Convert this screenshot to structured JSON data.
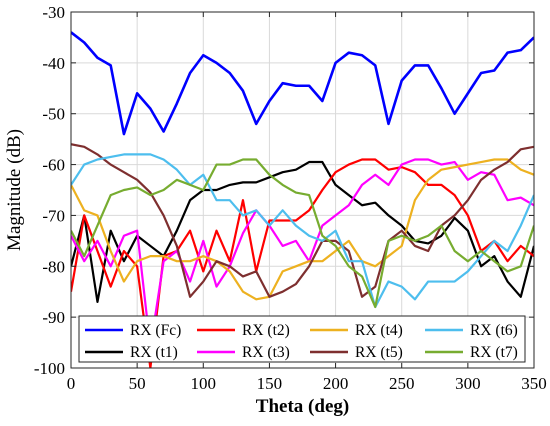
{
  "chart_data": {
    "type": "line",
    "title": "",
    "xlabel": "Theta (deg)",
    "ylabel": "Magnitude (dB)",
    "xlim": [
      0,
      350
    ],
    "ylim": [
      -100,
      -30
    ],
    "xticks": [
      0,
      50,
      100,
      150,
      200,
      250,
      300,
      350
    ],
    "yticks": [
      -30,
      -40,
      -50,
      -60,
      -70,
      -80,
      -90,
      -100
    ],
    "xtick_labels": [
      "0",
      "50",
      "100",
      "150",
      "200",
      "250",
      "300",
      "350"
    ],
    "ytick_labels": [
      "-30",
      "-40",
      "-50",
      "-60",
      "-70",
      "-80",
      "-90",
      "-100"
    ],
    "grid": true,
    "legend_placement": "bottom",
    "legend_columns": 4,
    "series": [
      {
        "name": "RX (Fc)",
        "color": "#0000ff",
        "x": [
          0,
          10,
          20,
          30,
          40,
          50,
          60,
          70,
          80,
          90,
          100,
          110,
          120,
          130,
          140,
          150,
          160,
          170,
          180,
          190,
          200,
          210,
          220,
          230,
          240,
          250,
          260,
          270,
          280,
          290,
          300,
          310,
          320,
          330,
          340,
          350
        ],
        "y": [
          -34,
          -36,
          -39,
          -40.5,
          -54,
          -46,
          -49,
          -53.5,
          -48,
          -42,
          -38.5,
          -40,
          -42,
          -45.5,
          -52,
          -47.5,
          -44,
          -44.5,
          -44.5,
          -47.5,
          -40,
          -38,
          -38.5,
          -40.5,
          -52,
          -43.5,
          -40.5,
          -40.5,
          -45,
          -50,
          -46,
          -42,
          -41.5,
          -38,
          -37.5,
          -35
        ]
      },
      {
        "name": "RX (t1)",
        "color": "#000000",
        "x": [
          0,
          10,
          20,
          30,
          40,
          50,
          60,
          70,
          80,
          90,
          100,
          110,
          120,
          130,
          140,
          150,
          160,
          170,
          180,
          190,
          200,
          210,
          220,
          230,
          240,
          250,
          260,
          270,
          280,
          290,
          300,
          310,
          320,
          330,
          340,
          350
        ],
        "y": [
          -80,
          -70,
          -87,
          -73,
          -79,
          -74,
          -76,
          -78,
          -73,
          -67,
          -65,
          -65,
          -64,
          -63.5,
          -63.5,
          -62.5,
          -61.5,
          -61,
          -59.5,
          -59.5,
          -64,
          -66,
          -68,
          -67.5,
          -70,
          -72,
          -75,
          -75.5,
          -74,
          -70.5,
          -73,
          -80,
          -78,
          -83,
          -86,
          -76
        ]
      },
      {
        "name": "RX (t2)",
        "color": "#ff0000",
        "x": [
          0,
          10,
          20,
          30,
          40,
          50,
          60,
          70,
          80,
          90,
          100,
          110,
          120,
          130,
          140,
          150,
          160,
          170,
          180,
          190,
          200,
          210,
          220,
          230,
          240,
          250,
          260,
          270,
          280,
          290,
          300,
          310,
          320,
          330,
          340,
          350
        ],
        "y": [
          -85,
          -70,
          -77,
          -84,
          -77,
          -80,
          -100,
          -78,
          -77,
          -73,
          -81,
          -73,
          -79,
          -67,
          -81,
          -71,
          -71,
          -71,
          -69,
          -65,
          -61.5,
          -60,
          -59,
          -59,
          -61,
          -60.5,
          -61.5,
          -64,
          -64,
          -66,
          -70,
          -77,
          -75,
          -79,
          -76,
          -78
        ]
      },
      {
        "name": "RX (t3)",
        "color": "#ff00ff",
        "x": [
          0,
          10,
          20,
          30,
          40,
          50,
          60,
          70,
          80,
          90,
          100,
          110,
          120,
          130,
          140,
          150,
          160,
          170,
          180,
          190,
          200,
          210,
          220,
          230,
          240,
          250,
          260,
          270,
          280,
          290,
          300,
          310,
          320,
          330,
          340,
          350
        ],
        "y": [
          -74,
          -79,
          -75,
          -80,
          -74,
          -73,
          -96,
          -79,
          -77,
          -83,
          -75,
          -84,
          -80,
          -73.5,
          -69,
          -72,
          -76,
          -75,
          -79,
          -72,
          -70,
          -68,
          -64,
          -62,
          -64,
          -60,
          -59,
          -59,
          -60,
          -59.5,
          -63,
          -61.5,
          -62,
          -67,
          -66.5,
          -68
        ]
      },
      {
        "name": "RX (t4)",
        "color": "#edb120",
        "x": [
          0,
          10,
          20,
          30,
          40,
          50,
          60,
          70,
          80,
          90,
          100,
          110,
          120,
          130,
          140,
          150,
          160,
          170,
          180,
          190,
          200,
          210,
          220,
          230,
          240,
          250,
          260,
          270,
          280,
          290,
          300,
          310,
          320,
          330,
          340,
          350
        ],
        "y": [
          -64,
          -69,
          -70,
          -77,
          -83,
          -79,
          -78,
          -78,
          -79,
          -79,
          -78,
          -79,
          -81,
          -85,
          -86.5,
          -86,
          -81,
          -80,
          -79,
          -79,
          -77,
          -75,
          -79,
          -80,
          -78,
          -76,
          -67,
          -63,
          -61,
          -60.5,
          -60,
          -59.5,
          -59,
          -59,
          -61,
          -62
        ]
      },
      {
        "name": "RX (t5)",
        "color": "#7e2f2f",
        "x": [
          0,
          10,
          20,
          30,
          40,
          50,
          60,
          70,
          80,
          90,
          100,
          110,
          120,
          130,
          140,
          150,
          160,
          170,
          180,
          190,
          200,
          210,
          220,
          230,
          240,
          250,
          260,
          270,
          280,
          290,
          300,
          310,
          320,
          330,
          340,
          350
        ],
        "y": [
          -56,
          -56.5,
          -58,
          -60,
          -61.5,
          -63,
          -65.5,
          -70,
          -76,
          -86,
          -83,
          -79,
          -80,
          -82,
          -81,
          -86,
          -85,
          -83.5,
          -80,
          -75,
          -75,
          -77,
          -86,
          -84,
          -75,
          -73,
          -76,
          -77,
          -72,
          -70,
          -67,
          -63,
          -61,
          -59.5,
          -57,
          -56.5
        ]
      },
      {
        "name": "RX (t6)",
        "color": "#4dbeee",
        "x": [
          0,
          10,
          20,
          30,
          40,
          50,
          60,
          70,
          80,
          90,
          100,
          110,
          120,
          130,
          140,
          150,
          160,
          170,
          180,
          190,
          200,
          210,
          220,
          230,
          240,
          250,
          260,
          270,
          280,
          290,
          300,
          310,
          320,
          330,
          340,
          350
        ],
        "y": [
          -64,
          -60,
          -59,
          -58.5,
          -58,
          -58,
          -58,
          -59,
          -61,
          -64,
          -62,
          -67,
          -67,
          -70,
          -69,
          -72,
          -69,
          -72,
          -74,
          -75,
          -73,
          -79,
          -79,
          -88,
          -83,
          -84,
          -86.5,
          -83,
          -83,
          -83,
          -81,
          -78,
          -75,
          -77,
          -72,
          -66
        ]
      },
      {
        "name": "RX (t7)",
        "color": "#77ac30",
        "x": [
          0,
          10,
          20,
          30,
          40,
          50,
          60,
          70,
          80,
          90,
          100,
          110,
          120,
          130,
          140,
          150,
          160,
          170,
          180,
          190,
          200,
          210,
          220,
          230,
          240,
          250,
          260,
          270,
          280,
          290,
          300,
          310,
          320,
          330,
          340,
          350
        ],
        "y": [
          -73,
          -78,
          -72,
          -66,
          -65,
          -64.5,
          -66,
          -65,
          -63,
          -64,
          -65,
          -60,
          -60,
          -59,
          -59,
          -62,
          -64,
          -65.5,
          -66,
          -74,
          -76,
          -80,
          -82,
          -88,
          -75,
          -74,
          -75,
          -74,
          -72,
          -77,
          -79,
          -77,
          -79,
          -81,
          -80,
          -72
        ]
      }
    ]
  }
}
